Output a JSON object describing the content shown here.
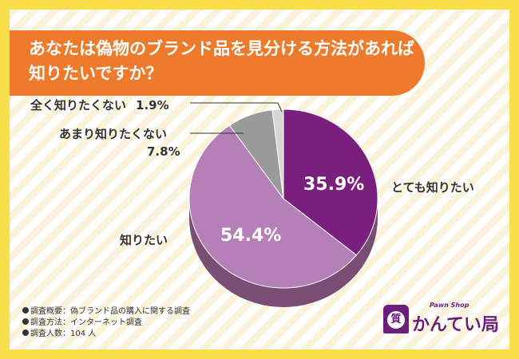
{
  "title": {
    "lines": [
      "あなたは偽物のブランド品を見分ける方法があれば",
      "知りたいですか？"
    ]
  },
  "chart_data": {
    "type": "pie",
    "style": "3d",
    "slices": [
      {
        "label": "とても知りたい",
        "value": 35.9,
        "value_text": "35.9%",
        "color": "#7b1f7e"
      },
      {
        "label": "知りたい",
        "value": 54.4,
        "value_text": "54.4%",
        "color": "#b57fb8"
      },
      {
        "label": "あまり知りたくない",
        "value": 7.8,
        "value_text": "7.8%",
        "color": "#9a9a9a"
      },
      {
        "label": "全く知りたくない",
        "value": 1.9,
        "value_text": "1.9%",
        "color": "#d6d6d6"
      }
    ],
    "side_color": "#7a4d75"
  },
  "footnotes": [
    "調査概要：偽ブランド品の購入に関する調査",
    "調査方法：インターネット調査",
    "調査人数：104 人"
  ],
  "logo": {
    "name": "かんてい局",
    "sub": "Pawn Shop",
    "mark": "質",
    "reg": "®"
  },
  "colors": {
    "frame": "#f9e04b",
    "banner": "#ee7a2b"
  }
}
